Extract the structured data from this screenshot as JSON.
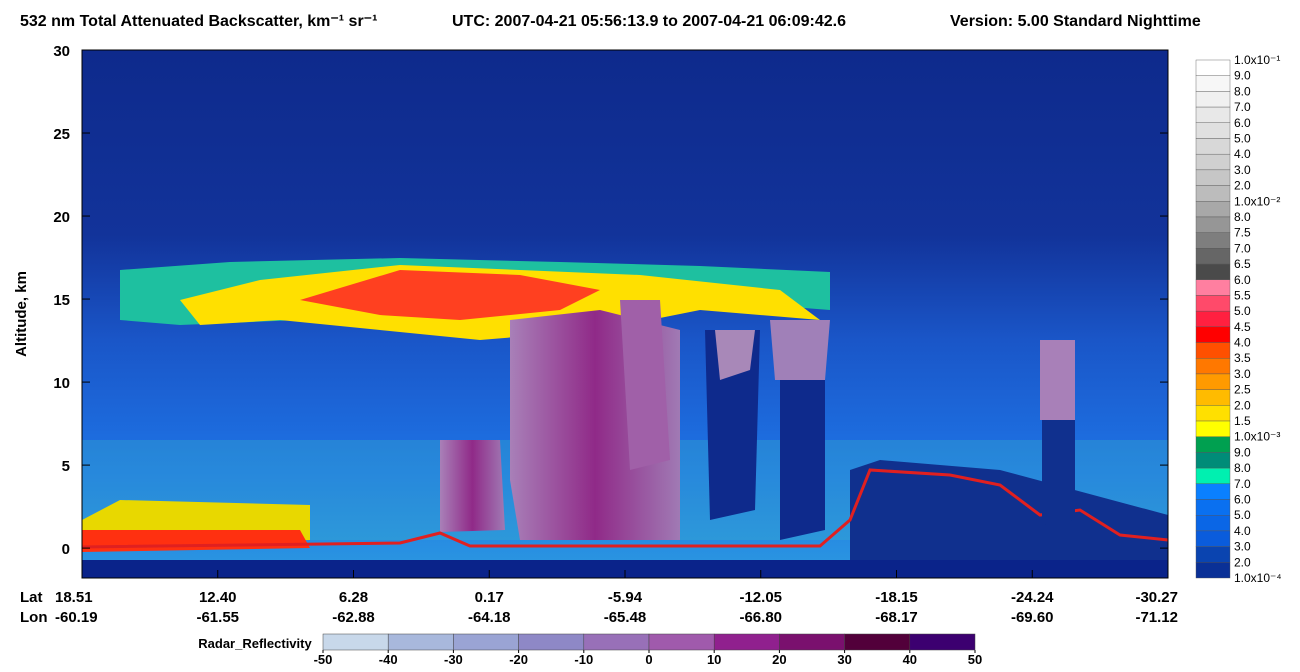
{
  "chart_data": {
    "type": "heatmap",
    "title": "532 nm Total Attenuated Backscatter, km⁻¹ sr⁻¹",
    "time_range": "UTC:  2007-04-21 05:56:13.9  to  2007-04-21 06:09:42.6",
    "version": "Version: 5.00  Standard  Nighttime",
    "y_label": "Altitude, km",
    "ylim": [
      -1.8,
      30
    ],
    "yticks": [
      0,
      5,
      10,
      15,
      20,
      25,
      30
    ],
    "lat_label": "Lat",
    "lon_label": "Lon",
    "lat": [
      "18.51",
      "12.40",
      "6.28",
      "0.17",
      "-5.94",
      "-12.05",
      "-18.15",
      "-24.24",
      "-30.27"
    ],
    "lon": [
      "-60.19",
      "-61.55",
      "-62.88",
      "-64.18",
      "-65.48",
      "-66.80",
      "-68.17",
      "-69.60",
      "-71.12"
    ],
    "colorbar": {
      "labels": [
        "1.0x10⁻¹",
        "9.0",
        "8.0",
        "7.0",
        "6.0",
        "5.0",
        "4.0",
        "3.0",
        "2.0",
        "1.0x10⁻²",
        "8.0",
        "7.5",
        "7.0",
        "6.5",
        "6.0",
        "5.5",
        "5.0",
        "4.5",
        "4.0",
        "3.5",
        "3.0",
        "2.5",
        "2.0",
        "1.5",
        "1.0x10⁻³",
        "9.0",
        "8.0",
        "7.0",
        "6.0",
        "5.0",
        "4.0",
        "3.0",
        "2.0",
        "1.0x10⁻⁴"
      ],
      "colors": [
        "#ffffff",
        "#f7f7f7",
        "#f0f0f0",
        "#e8e8e8",
        "#e0e0e0",
        "#d8d8d8",
        "#d0d0d0",
        "#c6c6c6",
        "#bcbcbc",
        "#a8a8a8",
        "#969696",
        "#7e7e7e",
        "#666666",
        "#4a4a4a",
        "#ff7fa0",
        "#ff4a6a",
        "#ff2040",
        "#ff0000",
        "#ff5000",
        "#ff7800",
        "#ff9a00",
        "#ffbb00",
        "#ffe000",
        "#ffff00",
        "#00a050",
        "#008c78",
        "#00f0b0",
        "#0a80ff",
        "#0a70f0",
        "#0a66e6",
        "#0a5cdc",
        "#0a44b0",
        "#0a3096"
      ]
    },
    "radar_colorbar": {
      "label": "Radar_Reflectivity",
      "ticks": [
        -50,
        -40,
        -30,
        -20,
        -10,
        0,
        10,
        20,
        30,
        40,
        50
      ],
      "colors": [
        "#c8d8ea",
        "#a8b8dc",
        "#9aa4d4",
        "#8e88c6",
        "#9870b8",
        "#a05aac",
        "#90208e",
        "#7a106e",
        "#52003a",
        "#3c0070"
      ]
    }
  }
}
